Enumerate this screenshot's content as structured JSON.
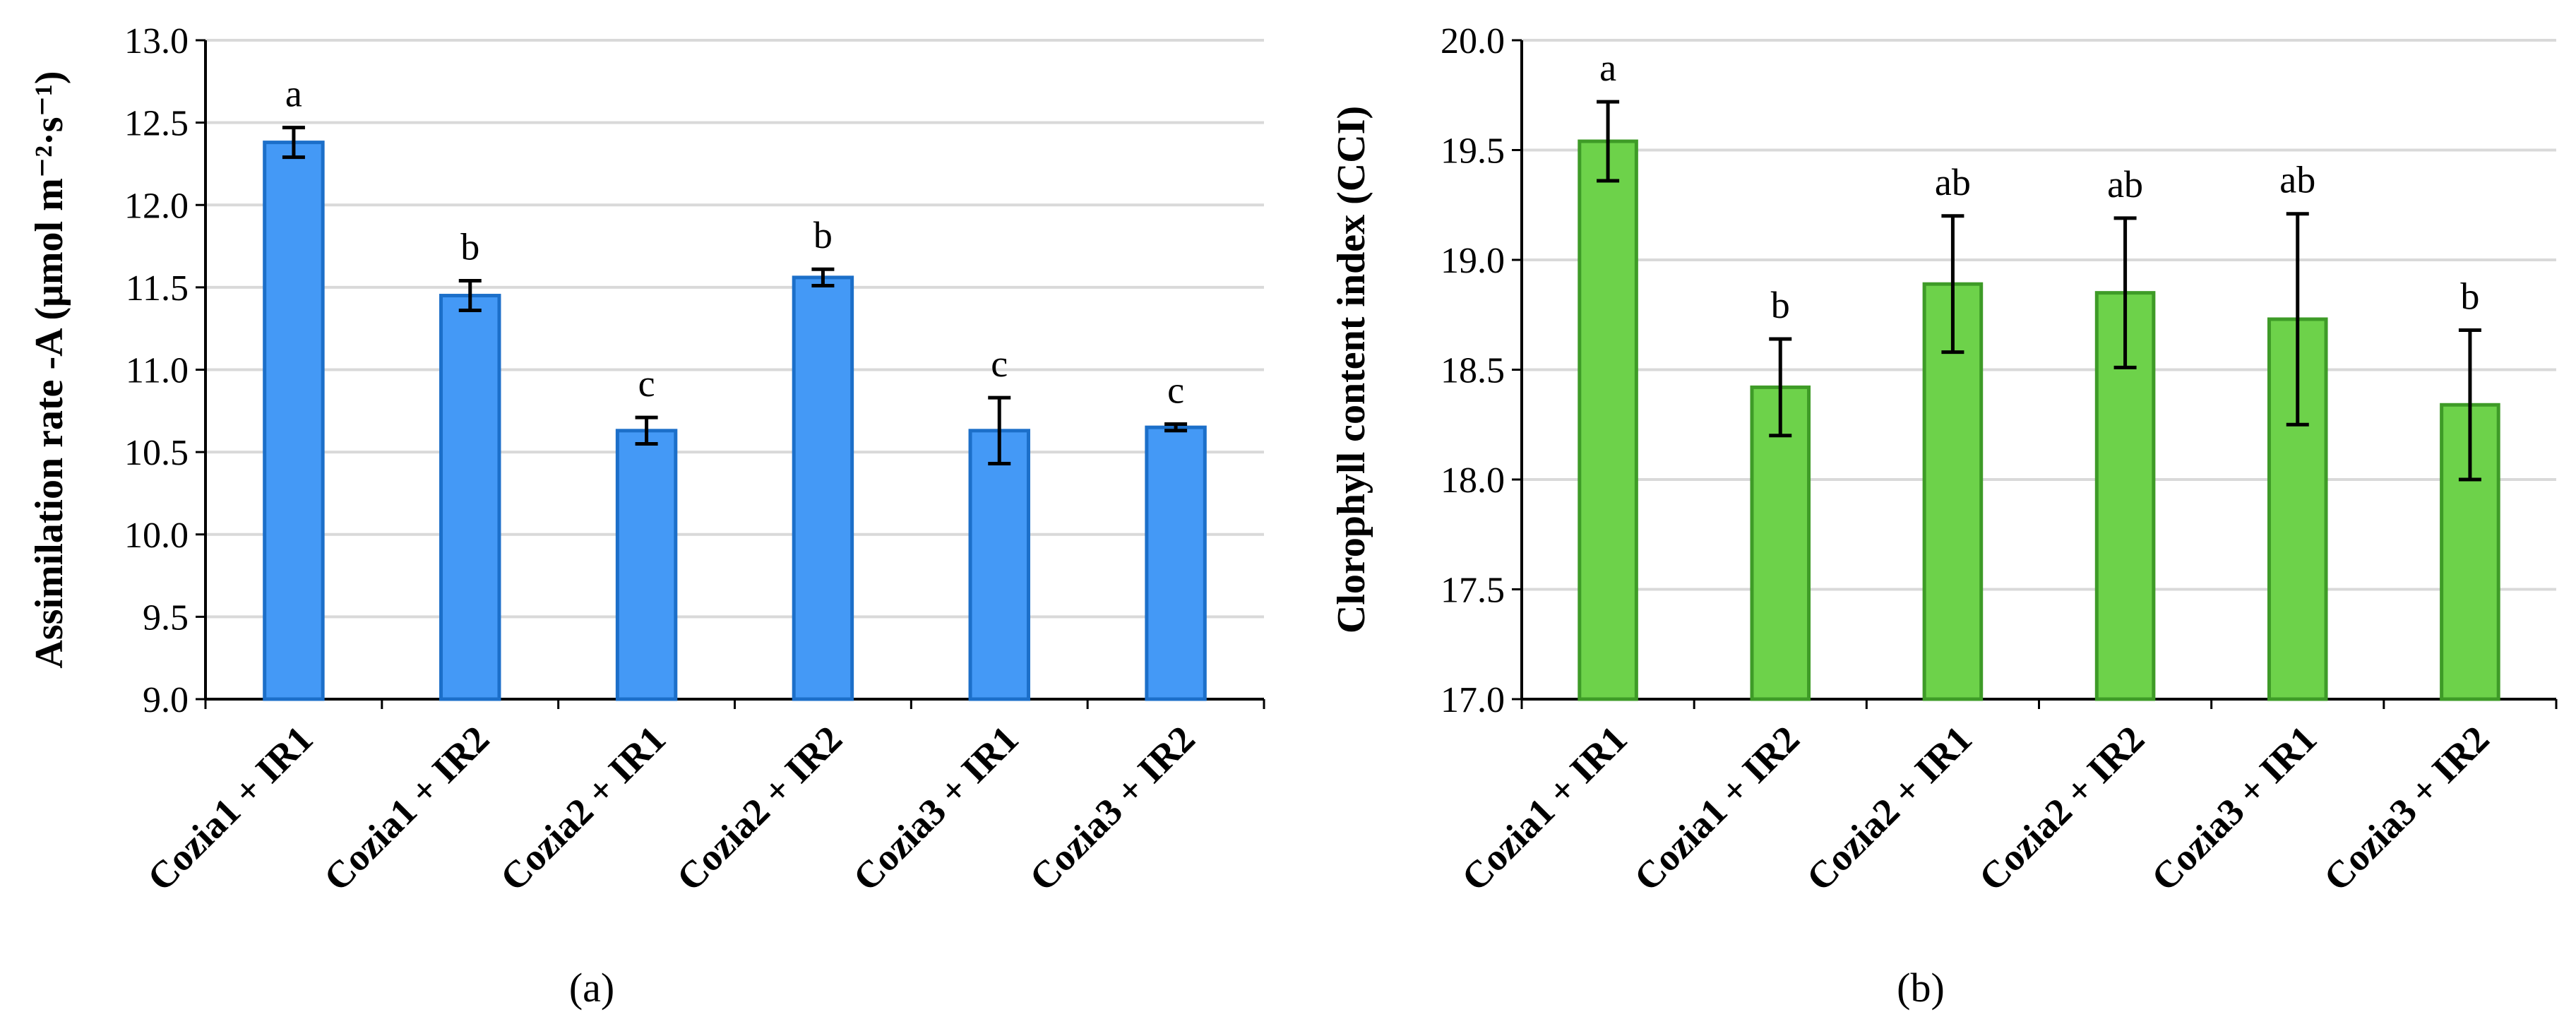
{
  "chart_data": [
    {
      "type": "bar",
      "panel_label": "(a)",
      "ylabel": "Assimilation rate -A (μmol m⁻²·s⁻¹)",
      "ylim": [
        9.0,
        13.0
      ],
      "ytick_step": 0.5,
      "grid": true,
      "bar_color": "#4499F6",
      "bar_edge_color": "#1C6FC9",
      "categories": [
        "Cozia1 + IR1",
        "Cozia1 + IR2",
        "Cozia2 + IR1",
        "Cozia2 + IR2",
        "Cozia3 + IR1",
        "Cozia3 + IR2"
      ],
      "values": [
        12.38,
        11.45,
        10.63,
        11.56,
        10.63,
        10.65
      ],
      "errors": [
        0.09,
        0.09,
        0.08,
        0.05,
        0.2,
        0.02
      ],
      "significance": [
        "a",
        "b",
        "c",
        "b",
        "c",
        "c"
      ]
    },
    {
      "type": "bar",
      "panel_label": "(b)",
      "ylabel": "Clorophyll content index (CCI)",
      "ylim": [
        17.0,
        20.0
      ],
      "ytick_step": 0.5,
      "grid": true,
      "bar_color": "#6DD24A",
      "bar_edge_color": "#3E9B27",
      "categories": [
        "Cozia1 + IR1",
        "Cozia1 + IR2",
        "Cozia2 + IR1",
        "Cozia2 + IR2",
        "Cozia3 + IR1",
        "Cozia3 + IR2"
      ],
      "values": [
        19.54,
        18.42,
        18.89,
        18.85,
        18.73,
        18.34
      ],
      "errors": [
        0.18,
        0.22,
        0.31,
        0.34,
        0.48,
        0.34
      ],
      "significance": [
        "a",
        "b",
        "ab",
        "ab",
        "ab",
        "b"
      ]
    }
  ]
}
